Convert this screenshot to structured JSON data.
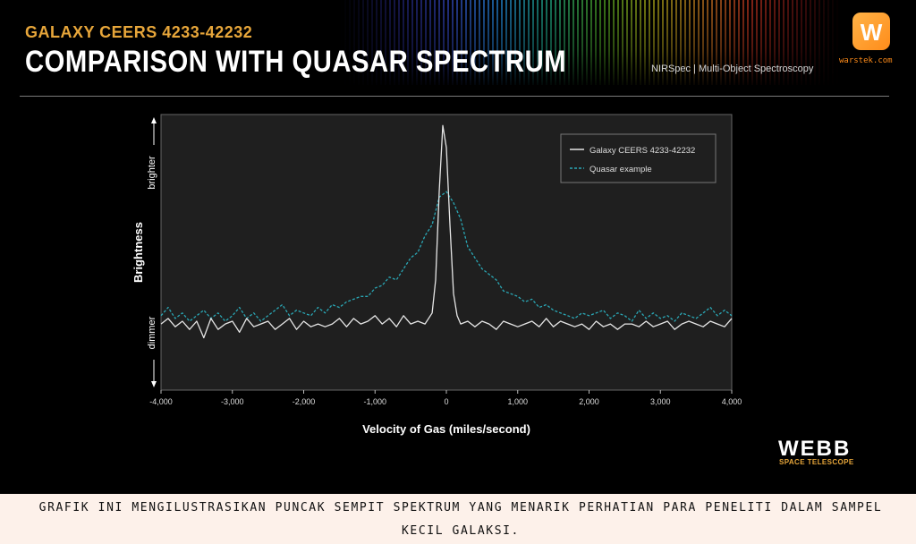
{
  "header": {
    "eyebrow": "GALAXY CEERS 4233-42232",
    "title": "COMPARISON WITH QUASAR SPECTRUM",
    "instrument": "NIRSpec | Multi-Object Spectroscopy"
  },
  "branding": {
    "logo_glyph": "W",
    "logo_text": "warstek.com",
    "webb": "WEBB",
    "webb_sub": "SPACE TELESCOPE",
    "accent_color": "#e7a63a",
    "logo_color": "#ff8c1a"
  },
  "caption": "GRAFIK INI MENGILUSTRASIKAN PUNCAK SEMPIT SPEKTRUM YANG MENARIK PERHATIAN PARA PENELITI DALAM SAMPEL KECIL GALAKSI.",
  "chart_data": {
    "type": "line",
    "title": "",
    "xlabel": "Velocity of Gas (miles/second)",
    "ylabel": "Brightness",
    "ylabel_top": "brighter",
    "ylabel_bottom": "dimmer",
    "xlim": [
      -4000,
      4000
    ],
    "ylim": [
      0,
      1
    ],
    "xticks": [
      -4000,
      -3000,
      -2000,
      -1000,
      0,
      1000,
      2000,
      3000,
      4000
    ],
    "xtick_labels": [
      "-4,000",
      "-3,000",
      "-2,000",
      "-1,000",
      "0",
      "1,000",
      "2,000",
      "3,000",
      "4,000"
    ],
    "grid": false,
    "legend": "top-right",
    "series": [
      {
        "name": "Galaxy CEERS 4233-42232",
        "style": "solid",
        "color": "#e6e6e6",
        "x": [
          -4000,
          -3900,
          -3800,
          -3700,
          -3600,
          -3500,
          -3400,
          -3300,
          -3200,
          -3100,
          -3000,
          -2900,
          -2800,
          -2700,
          -2600,
          -2500,
          -2400,
          -2300,
          -2200,
          -2100,
          -2000,
          -1900,
          -1800,
          -1700,
          -1600,
          -1500,
          -1400,
          -1300,
          -1200,
          -1100,
          -1000,
          -900,
          -800,
          -700,
          -600,
          -500,
          -400,
          -300,
          -200,
          -150,
          -100,
          -50,
          0,
          50,
          100,
          150,
          200,
          300,
          400,
          500,
          600,
          700,
          800,
          900,
          1000,
          1100,
          1200,
          1300,
          1400,
          1500,
          1600,
          1700,
          1800,
          1900,
          2000,
          2100,
          2200,
          2300,
          2400,
          2500,
          2600,
          2700,
          2800,
          2900,
          3000,
          3100,
          3200,
          3300,
          3400,
          3500,
          3600,
          3700,
          3800,
          3900,
          4000
        ],
        "y": [
          0.24,
          0.26,
          0.23,
          0.25,
          0.22,
          0.25,
          0.19,
          0.26,
          0.22,
          0.24,
          0.25,
          0.21,
          0.26,
          0.23,
          0.24,
          0.25,
          0.22,
          0.24,
          0.26,
          0.22,
          0.25,
          0.23,
          0.24,
          0.23,
          0.24,
          0.26,
          0.23,
          0.26,
          0.24,
          0.25,
          0.27,
          0.24,
          0.26,
          0.23,
          0.27,
          0.24,
          0.25,
          0.24,
          0.28,
          0.4,
          0.72,
          0.96,
          0.88,
          0.6,
          0.35,
          0.27,
          0.24,
          0.25,
          0.23,
          0.25,
          0.24,
          0.22,
          0.25,
          0.24,
          0.23,
          0.24,
          0.25,
          0.23,
          0.26,
          0.23,
          0.25,
          0.24,
          0.23,
          0.24,
          0.22,
          0.25,
          0.23,
          0.24,
          0.22,
          0.24,
          0.24,
          0.23,
          0.25,
          0.23,
          0.24,
          0.25,
          0.22,
          0.24,
          0.25,
          0.24,
          0.23,
          0.25,
          0.24,
          0.23,
          0.26
        ]
      },
      {
        "name": "Quasar example",
        "style": "dashed",
        "color": "#2aa7b5",
        "x": [
          -4000,
          -3900,
          -3800,
          -3700,
          -3600,
          -3500,
          -3400,
          -3300,
          -3200,
          -3100,
          -3000,
          -2900,
          -2800,
          -2700,
          -2600,
          -2500,
          -2400,
          -2300,
          -2200,
          -2100,
          -2000,
          -1900,
          -1800,
          -1700,
          -1600,
          -1500,
          -1400,
          -1300,
          -1200,
          -1100,
          -1000,
          -900,
          -800,
          -700,
          -600,
          -500,
          -400,
          -300,
          -200,
          -100,
          0,
          100,
          200,
          300,
          400,
          500,
          600,
          700,
          800,
          900,
          1000,
          1100,
          1200,
          1300,
          1400,
          1500,
          1600,
          1700,
          1800,
          1900,
          2000,
          2100,
          2200,
          2300,
          2400,
          2500,
          2600,
          2700,
          2800,
          2900,
          3000,
          3100,
          3200,
          3300,
          3400,
          3500,
          3600,
          3700,
          3800,
          3900,
          4000
        ],
        "y": [
          0.27,
          0.3,
          0.26,
          0.28,
          0.25,
          0.27,
          0.29,
          0.26,
          0.28,
          0.25,
          0.27,
          0.3,
          0.26,
          0.28,
          0.25,
          0.27,
          0.29,
          0.31,
          0.27,
          0.29,
          0.28,
          0.27,
          0.3,
          0.28,
          0.31,
          0.3,
          0.32,
          0.33,
          0.34,
          0.34,
          0.37,
          0.38,
          0.41,
          0.4,
          0.44,
          0.48,
          0.5,
          0.56,
          0.6,
          0.7,
          0.72,
          0.68,
          0.62,
          0.52,
          0.48,
          0.44,
          0.42,
          0.4,
          0.36,
          0.35,
          0.34,
          0.32,
          0.33,
          0.3,
          0.31,
          0.29,
          0.28,
          0.27,
          0.26,
          0.28,
          0.27,
          0.28,
          0.29,
          0.26,
          0.28,
          0.27,
          0.25,
          0.29,
          0.26,
          0.28,
          0.26,
          0.27,
          0.25,
          0.28,
          0.27,
          0.26,
          0.28,
          0.3,
          0.27,
          0.29,
          0.27
        ]
      }
    ]
  }
}
